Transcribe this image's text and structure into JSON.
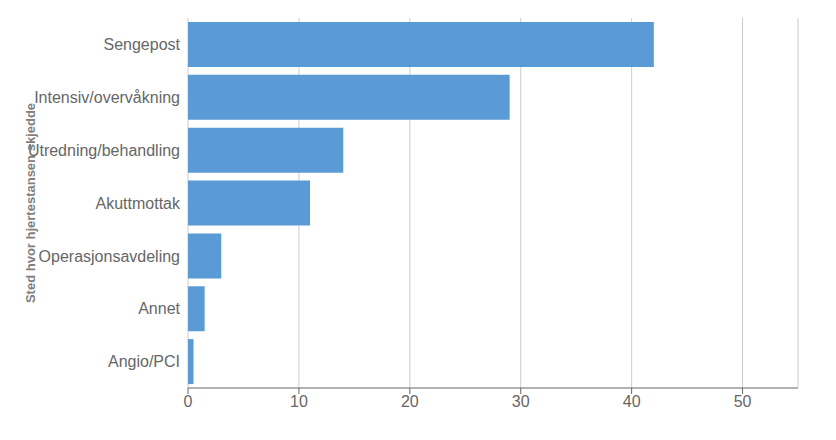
{
  "chart_data": {
    "type": "bar",
    "orientation": "horizontal",
    "categories": [
      "Angio/PCI",
      "Annet",
      "Operasjonsavdeling",
      "Akuttmottak",
      "Utredning/behandling",
      "Intensiv/overvåkning",
      "Sengepost"
    ],
    "values": [
      0.5,
      1.5,
      3.0,
      11.0,
      14.0,
      29.0,
      42.0
    ],
    "color": "#5B9BD5",
    "ylabel": "Sted hvor hjertestansen skjedde",
    "xlim": [
      0,
      55
    ],
    "xticks": [
      0,
      10,
      20,
      30,
      40,
      50
    ],
    "grid": true
  }
}
